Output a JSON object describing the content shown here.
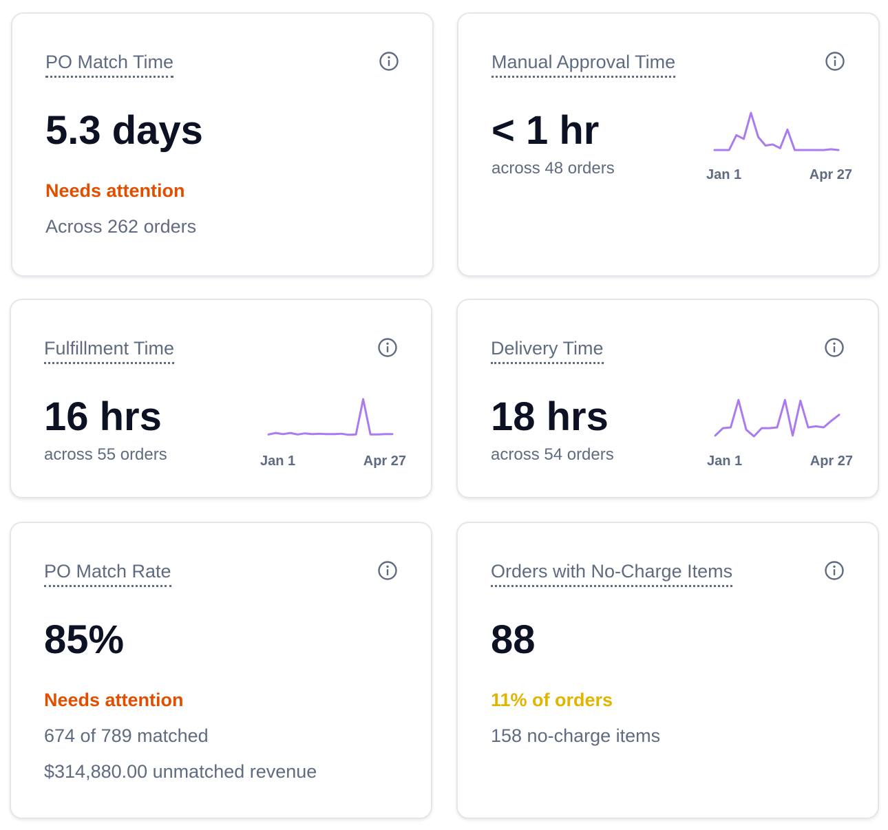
{
  "colors": {
    "attention": "#e04f00",
    "warning": "#e0b400",
    "sparkline": "#a97af0"
  },
  "cards": {
    "po_match_time": {
      "title": "PO Match Time",
      "value": "5.3 days",
      "status": "Needs attention",
      "detail": "Across 262 orders",
      "icon": "info-icon"
    },
    "manual_approval_time": {
      "title": "Manual Approval Time",
      "value": "< 1 hr",
      "sub": "across 48 orders",
      "icon": "info-icon",
      "chart_data": {
        "type": "line",
        "x_labels": [
          "Jan 1",
          "Apr 27"
        ],
        "values": [
          0,
          0,
          0,
          0.4,
          0.3,
          1.0,
          0.35,
          0.12,
          0.15,
          0.05,
          0.55,
          0,
          0,
          0,
          0,
          0,
          0.02,
          0
        ]
      }
    },
    "fulfillment_time": {
      "title": "Fulfillment Time",
      "value": "16 hrs",
      "sub": "across 55 orders",
      "icon": "info-icon",
      "chart_data": {
        "type": "line",
        "x_labels": [
          "Jan 1",
          "Apr 27"
        ],
        "values": [
          0.05,
          0.09,
          0.06,
          0.09,
          0.05,
          0.08,
          0.06,
          0.07,
          0.06,
          0.06,
          0.07,
          0.04,
          0.05,
          1.0,
          0.05,
          0.05,
          0.06,
          0.06
        ]
      }
    },
    "delivery_time": {
      "title": "Delivery Time",
      "value": "18 hrs",
      "sub": "across 54 orders",
      "icon": "info-icon",
      "chart_data": {
        "type": "line",
        "x_labels": [
          "Jan 1",
          "Apr 27"
        ],
        "values": [
          0.02,
          0.22,
          0.24,
          0.98,
          0.18,
          0.0,
          0.22,
          0.22,
          0.24,
          0.98,
          0.02,
          0.96,
          0.24,
          0.27,
          0.24,
          0.42,
          0.58
        ]
      }
    },
    "po_match_rate": {
      "title": "PO Match Rate",
      "value": "85%",
      "status": "Needs attention",
      "detail_1": "674 of 789 matched",
      "detail_2": "$314,880.00 unmatched revenue",
      "icon": "info-icon"
    },
    "no_charge_items": {
      "title": "Orders with No-Charge Items",
      "value": "88",
      "status": "11% of orders",
      "detail": "158 no-charge items",
      "icon": "info-icon"
    }
  }
}
